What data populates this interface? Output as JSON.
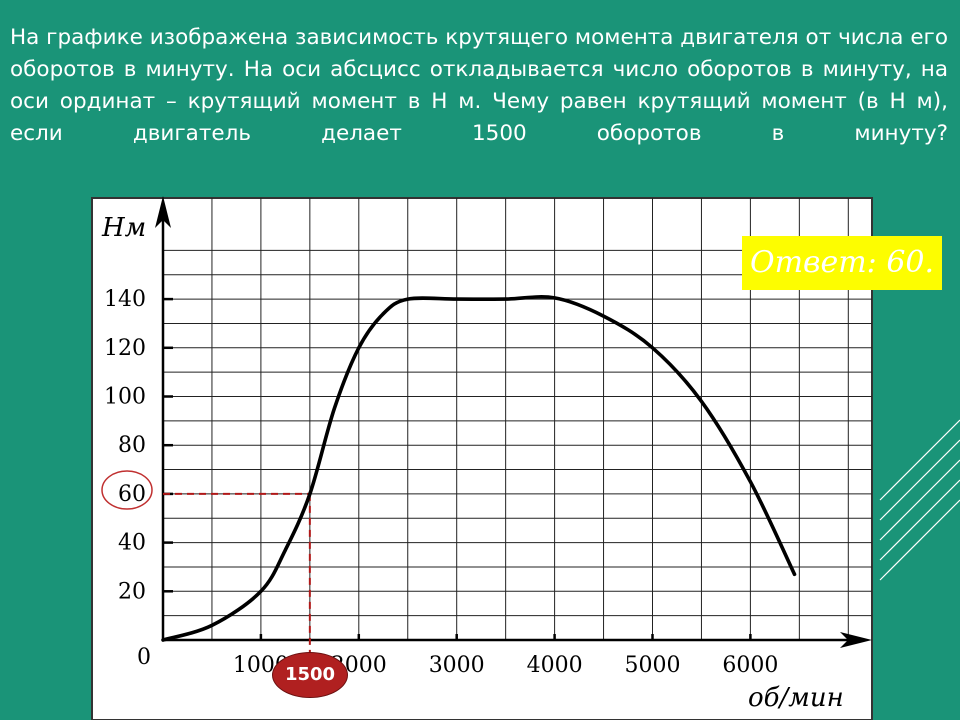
{
  "question": "На графике изображена зависимость крутящего момента двигателя от числа его оборотов в минуту. На оси абсцисс откладывается число оборотов в минуту, на оси ординат – крутящий момент в Н м. Чему равен крутящий момент (в Н м), если двигатель делает 1500 оборотов в минуту?",
  "answer": "Ответ: 60.",
  "highlight": {
    "x_label": "1500",
    "x": 1500,
    "y": 60
  },
  "colors": {
    "background": "#1a9478",
    "answer_box": "#fdfd00",
    "guide": "#b01818",
    "badge": "#b02020"
  },
  "chart_data": {
    "type": "line",
    "xlabel": "об/мин",
    "ylabel": "Нм",
    "origin_label": "0",
    "x_ticks": [
      "1000",
      "2000",
      "3000",
      "4000",
      "5000",
      "6000"
    ],
    "y_ticks": [
      "20",
      "40",
      "60",
      "80",
      "100",
      "120",
      "140"
    ],
    "xlim": [
      0,
      7000
    ],
    "ylim": [
      0,
      160
    ],
    "grid": true,
    "series": [
      {
        "x": [
          0,
          500,
          1000,
          1250,
          1500,
          1750,
          2000,
          2250,
          2500,
          3000,
          3500,
          4000,
          4500,
          5000,
          5500,
          6000,
          6450
        ],
        "y": [
          0,
          6,
          20,
          37,
          60,
          95,
          120,
          134,
          140,
          140,
          140,
          140.5,
          133,
          120,
          98,
          65,
          27
        ]
      }
    ]
  }
}
